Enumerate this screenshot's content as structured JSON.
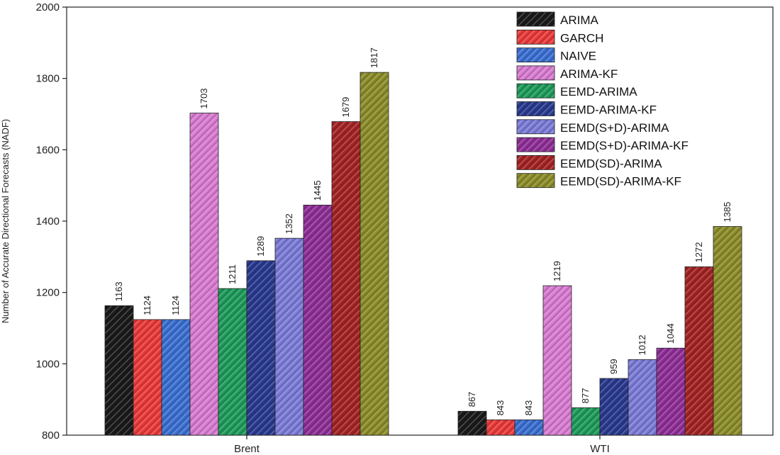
{
  "chart_data": {
    "type": "bar",
    "title": "",
    "xlabel": "",
    "ylabel": "Number of Accurate Directional Forecasts (NADF)",
    "ylim": [
      800,
      2000
    ],
    "yticks": [
      "800",
      "1000",
      "1200",
      "1400",
      "1600",
      "1800",
      "2000"
    ],
    "categories": [
      "Brent",
      "WTI"
    ],
    "grid": false,
    "legend_position": "top-right",
    "series": [
      {
        "name": "ARIMA",
        "color": "#1a1a1a",
        "values": [
          1163,
          867
        ]
      },
      {
        "name": "GARCH",
        "color": "#e83a3a",
        "values": [
          1124,
          843
        ]
      },
      {
        "name": "NAIVE",
        "color": "#3b6fd0",
        "values": [
          1124,
          843
        ]
      },
      {
        "name": "ARIMA-KF",
        "color": "#d77bd0",
        "values": [
          1703,
          1219
        ]
      },
      {
        "name": "EEMD-ARIMA",
        "color": "#1f9a5a",
        "values": [
          1211,
          877
        ]
      },
      {
        "name": "EEMD-ARIMA-KF",
        "color": "#2a3a8e",
        "values": [
          1289,
          959
        ]
      },
      {
        "name": "EEMD(S+D)-ARIMA",
        "color": "#7b7bd6",
        "values": [
          1352,
          1012
        ]
      },
      {
        "name": "EEMD(S+D)-ARIMA-KF",
        "color": "#8e2f96",
        "values": [
          1445,
          1044
        ]
      },
      {
        "name": "EEMD(SD)-ARIMA",
        "color": "#a32424",
        "values": [
          1679,
          1272
        ]
      },
      {
        "name": "EEMD(SD)-ARIMA-KF",
        "color": "#8b8c2a",
        "values": [
          1817,
          1385
        ]
      }
    ]
  }
}
